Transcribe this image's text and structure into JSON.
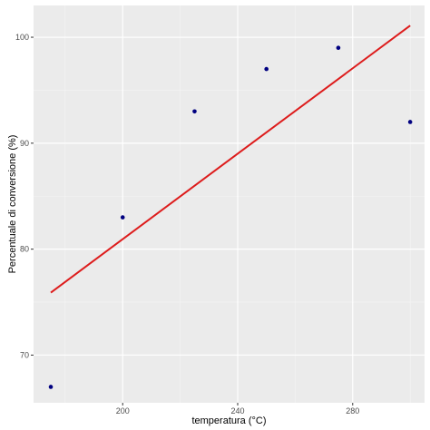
{
  "chart_data": {
    "type": "scatter",
    "title": "",
    "xlabel": "temperatura   (°C)",
    "ylabel": "Percentuale di conversione (%)",
    "xlim": [
      169,
      305
    ],
    "ylim": [
      65.5,
      103
    ],
    "x_ticks": [
      200,
      240,
      280
    ],
    "y_ticks": [
      70,
      80,
      90,
      100
    ],
    "grid": true,
    "legend": "none",
    "points": [
      {
        "x": 175,
        "y": 67
      },
      {
        "x": 200,
        "y": 83
      },
      {
        "x": 225,
        "y": 93
      },
      {
        "x": 250,
        "y": 97
      },
      {
        "x": 275,
        "y": 99
      },
      {
        "x": 300,
        "y": 92
      }
    ],
    "fit_line": {
      "x": [
        175,
        300
      ],
      "y": [
        75.9,
        101.1
      ]
    },
    "colors": {
      "panel": "#ebebeb",
      "grid_major": "#ffffff",
      "grid_minor": "#f5f5f5",
      "points": "#000080",
      "fit_line": "#dd1c1c"
    }
  }
}
